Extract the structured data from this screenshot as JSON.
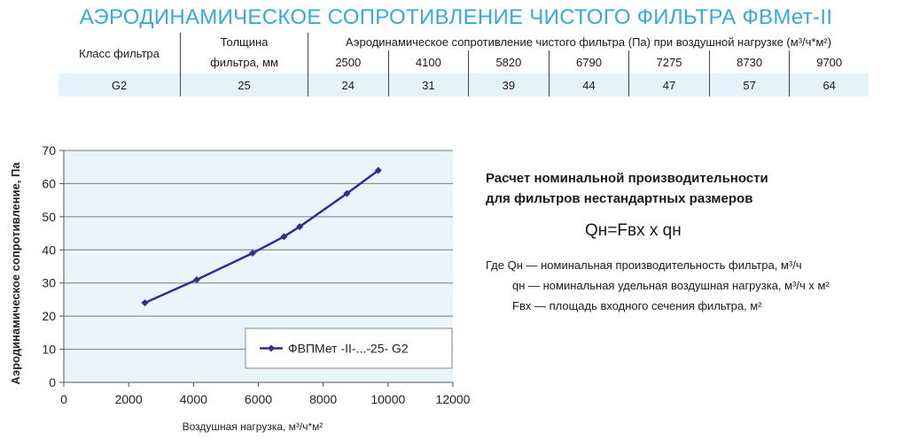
{
  "title": "АЭРОДИНАМИЧЕСКОЕ СОПРОТИВЛЕНИЕ ЧИСТОГО ФИЛЬТРА ФВМет-II",
  "table": {
    "col_class": "Класс фильтра",
    "col_thickness_l1": "Толщина",
    "col_thickness_l2": "фильтра, мм",
    "col_resistance": "Аэродинамическое сопротивление чистого фильтра (Па) при воздушной нагрузке (м³/ч*м²)",
    "loads": [
      "2500",
      "4100",
      "5820",
      "6790",
      "7275",
      "8730",
      "9700"
    ],
    "row": {
      "class": "G2",
      "thickness": "25",
      "values": [
        "24",
        "31",
        "39",
        "44",
        "47",
        "57",
        "64"
      ]
    }
  },
  "chart_data": {
    "type": "line",
    "ylabel": "Аэродинамическое сопротивление, Па",
    "xlabel": "Воздушная нагрузка, м³/ч*м²",
    "xlim": [
      0,
      12000
    ],
    "ylim": [
      0,
      70
    ],
    "x_ticks": [
      "0",
      "2000",
      "4000",
      "6000",
      "8000",
      "10000",
      "12000"
    ],
    "y_ticks": [
      "0",
      "10",
      "20",
      "30",
      "40",
      "50",
      "60",
      "70"
    ],
    "grid": "horizontal",
    "legend_position": "bottom-right",
    "series": [
      {
        "name": "ФВПМет -II-...-25- G2",
        "color": "#2e2e96",
        "x": [
          2500,
          4100,
          5820,
          6790,
          7275,
          8730,
          9700
        ],
        "y": [
          24,
          31,
          39,
          44,
          47,
          57,
          64
        ]
      }
    ]
  },
  "info": {
    "heading_l1": "Расчет номинальной производительности",
    "heading_l2": "для фильтров нестандартных размеров",
    "formula": "Qн=Fвх х qн",
    "def1": "Где Qн — номинальная производительность фильтра, м³/ч",
    "def2": "qн — номинальная удельная воздушная нагрузка, м³/ч х м²",
    "def3": "Fвх — площадь входного сечения фильтра, м²"
  }
}
